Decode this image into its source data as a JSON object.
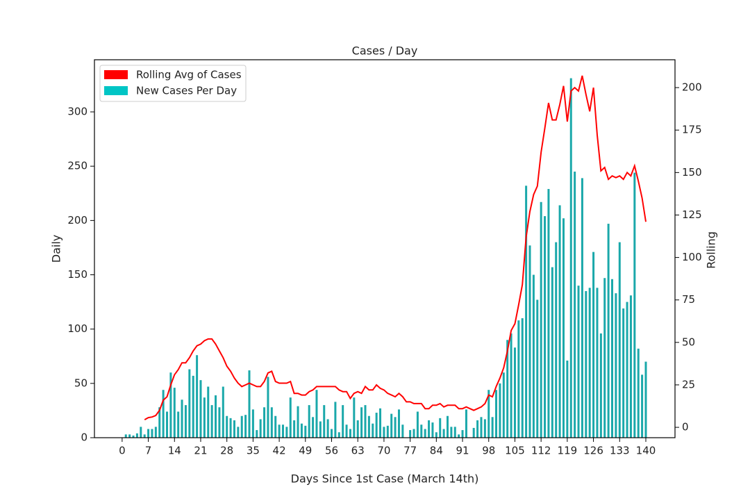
{
  "chart_data": {
    "type": "bar_line",
    "title": "Cases / Day",
    "xlabel": "Days Since 1st Case (March 14th)",
    "ylabel": "Daily",
    "y2label": "Rolling",
    "x": [
      0,
      1,
      2,
      3,
      4,
      5,
      6,
      7,
      8,
      9,
      10,
      11,
      12,
      13,
      14,
      15,
      16,
      17,
      18,
      19,
      20,
      21,
      22,
      23,
      24,
      25,
      26,
      27,
      28,
      29,
      30,
      31,
      32,
      33,
      34,
      35,
      36,
      37,
      38,
      39,
      40,
      41,
      42,
      43,
      44,
      45,
      46,
      47,
      48,
      49,
      50,
      51,
      52,
      53,
      54,
      55,
      56,
      57,
      58,
      59,
      60,
      61,
      62,
      63,
      64,
      65,
      66,
      67,
      68,
      69,
      70,
      71,
      72,
      73,
      74,
      75,
      76,
      77,
      78,
      79,
      80,
      81,
      82,
      83,
      84,
      85,
      86,
      87,
      88,
      89,
      90,
      91,
      92,
      93,
      94,
      95,
      96,
      97,
      98,
      99,
      100,
      101,
      102,
      103,
      104,
      105,
      106,
      107,
      108,
      109,
      110,
      111,
      112,
      113,
      114,
      115,
      116,
      117,
      118,
      119,
      120,
      121,
      122,
      123,
      124,
      125,
      126,
      127,
      128,
      129,
      130,
      131,
      132,
      133,
      134,
      135,
      136,
      137,
      138,
      139,
      140
    ],
    "xlim": [
      -7.4,
      147.8
    ],
    "xticks": [
      0,
      7,
      14,
      21,
      28,
      35,
      42,
      49,
      56,
      63,
      70,
      77,
      84,
      91,
      98,
      105,
      112,
      119,
      126,
      133,
      140
    ],
    "ylim": [
      0,
      348
    ],
    "yticks": [
      0,
      50,
      100,
      150,
      200,
      250,
      300
    ],
    "y2lim": [
      -6.1,
      216.4
    ],
    "y2ticks": [
      0,
      25,
      50,
      75,
      100,
      125,
      150,
      175,
      200
    ],
    "legend": "upper left",
    "series": [
      {
        "name": "Rolling Avg of Cases",
        "color": "#ff0000",
        "axis": "y2",
        "legend_color": "#ff0000",
        "values": [
          null,
          null,
          null,
          null,
          null,
          null,
          4.5,
          5.7,
          6.1,
          7,
          10,
          16,
          18,
          25,
          31,
          34,
          38,
          38,
          41,
          45,
          48,
          49,
          51,
          52,
          52,
          49,
          45,
          41,
          36,
          33,
          29,
          26,
          24,
          25,
          26,
          25,
          24,
          24,
          27,
          32,
          33,
          27,
          26,
          26,
          26,
          27,
          20,
          20,
          19,
          19,
          21,
          22,
          24,
          24,
          24,
          24,
          24,
          24,
          22,
          21,
          21,
          17,
          20,
          21,
          20,
          24,
          22,
          22,
          25,
          23,
          22,
          20,
          19,
          18,
          20,
          18,
          15,
          15,
          14,
          14,
          14,
          11,
          11,
          13,
          13,
          14,
          12,
          13,
          13,
          13,
          11,
          11,
          12,
          11,
          10,
          11,
          12,
          14,
          19,
          18,
          24,
          29,
          35,
          45,
          57,
          61,
          72,
          84,
          112,
          127,
          137,
          142,
          162,
          176,
          191,
          181,
          181,
          190,
          201,
          180,
          198,
          200,
          198,
          207,
          196,
          186,
          200,
          172,
          151,
          153,
          146,
          148,
          147,
          148,
          146,
          150,
          148,
          154,
          145,
          135,
          121
        ]
      },
      {
        "name": "New Cases Per Day",
        "color": "#1aa8aa",
        "legend_color": "#00c5c5",
        "values": [
          0,
          3,
          3,
          2,
          4,
          10,
          3,
          8,
          8,
          10,
          28,
          44,
          24,
          60,
          46,
          24,
          35,
          30,
          63,
          57,
          76,
          53,
          37,
          47,
          30,
          39,
          28,
          47,
          20,
          18,
          16,
          10,
          20,
          21,
          62,
          26,
          7,
          17,
          28,
          56,
          28,
          20,
          12,
          12,
          10,
          37,
          16,
          29,
          13,
          11,
          30,
          19,
          44,
          15,
          30,
          17,
          8,
          33,
          5,
          30,
          12,
          8,
          37,
          16,
          28,
          30,
          20,
          13,
          23,
          27,
          10,
          11,
          22,
          19,
          26,
          12,
          0,
          7,
          8,
          24,
          12,
          8,
          16,
          14,
          5,
          18,
          8,
          20,
          10,
          10,
          3,
          7,
          26,
          0,
          9,
          16,
          19,
          17,
          44,
          19,
          44,
          50,
          60,
          90,
          96,
          83,
          108,
          110,
          232,
          177,
          150,
          127,
          217,
          204,
          229,
          157,
          180,
          214,
          202,
          71,
          331,
          245,
          140,
          239,
          135,
          138,
          171,
          138,
          96,
          147,
          197,
          146,
          133,
          180,
          119,
          125,
          131,
          244,
          82,
          58,
          70
        ]
      }
    ]
  }
}
